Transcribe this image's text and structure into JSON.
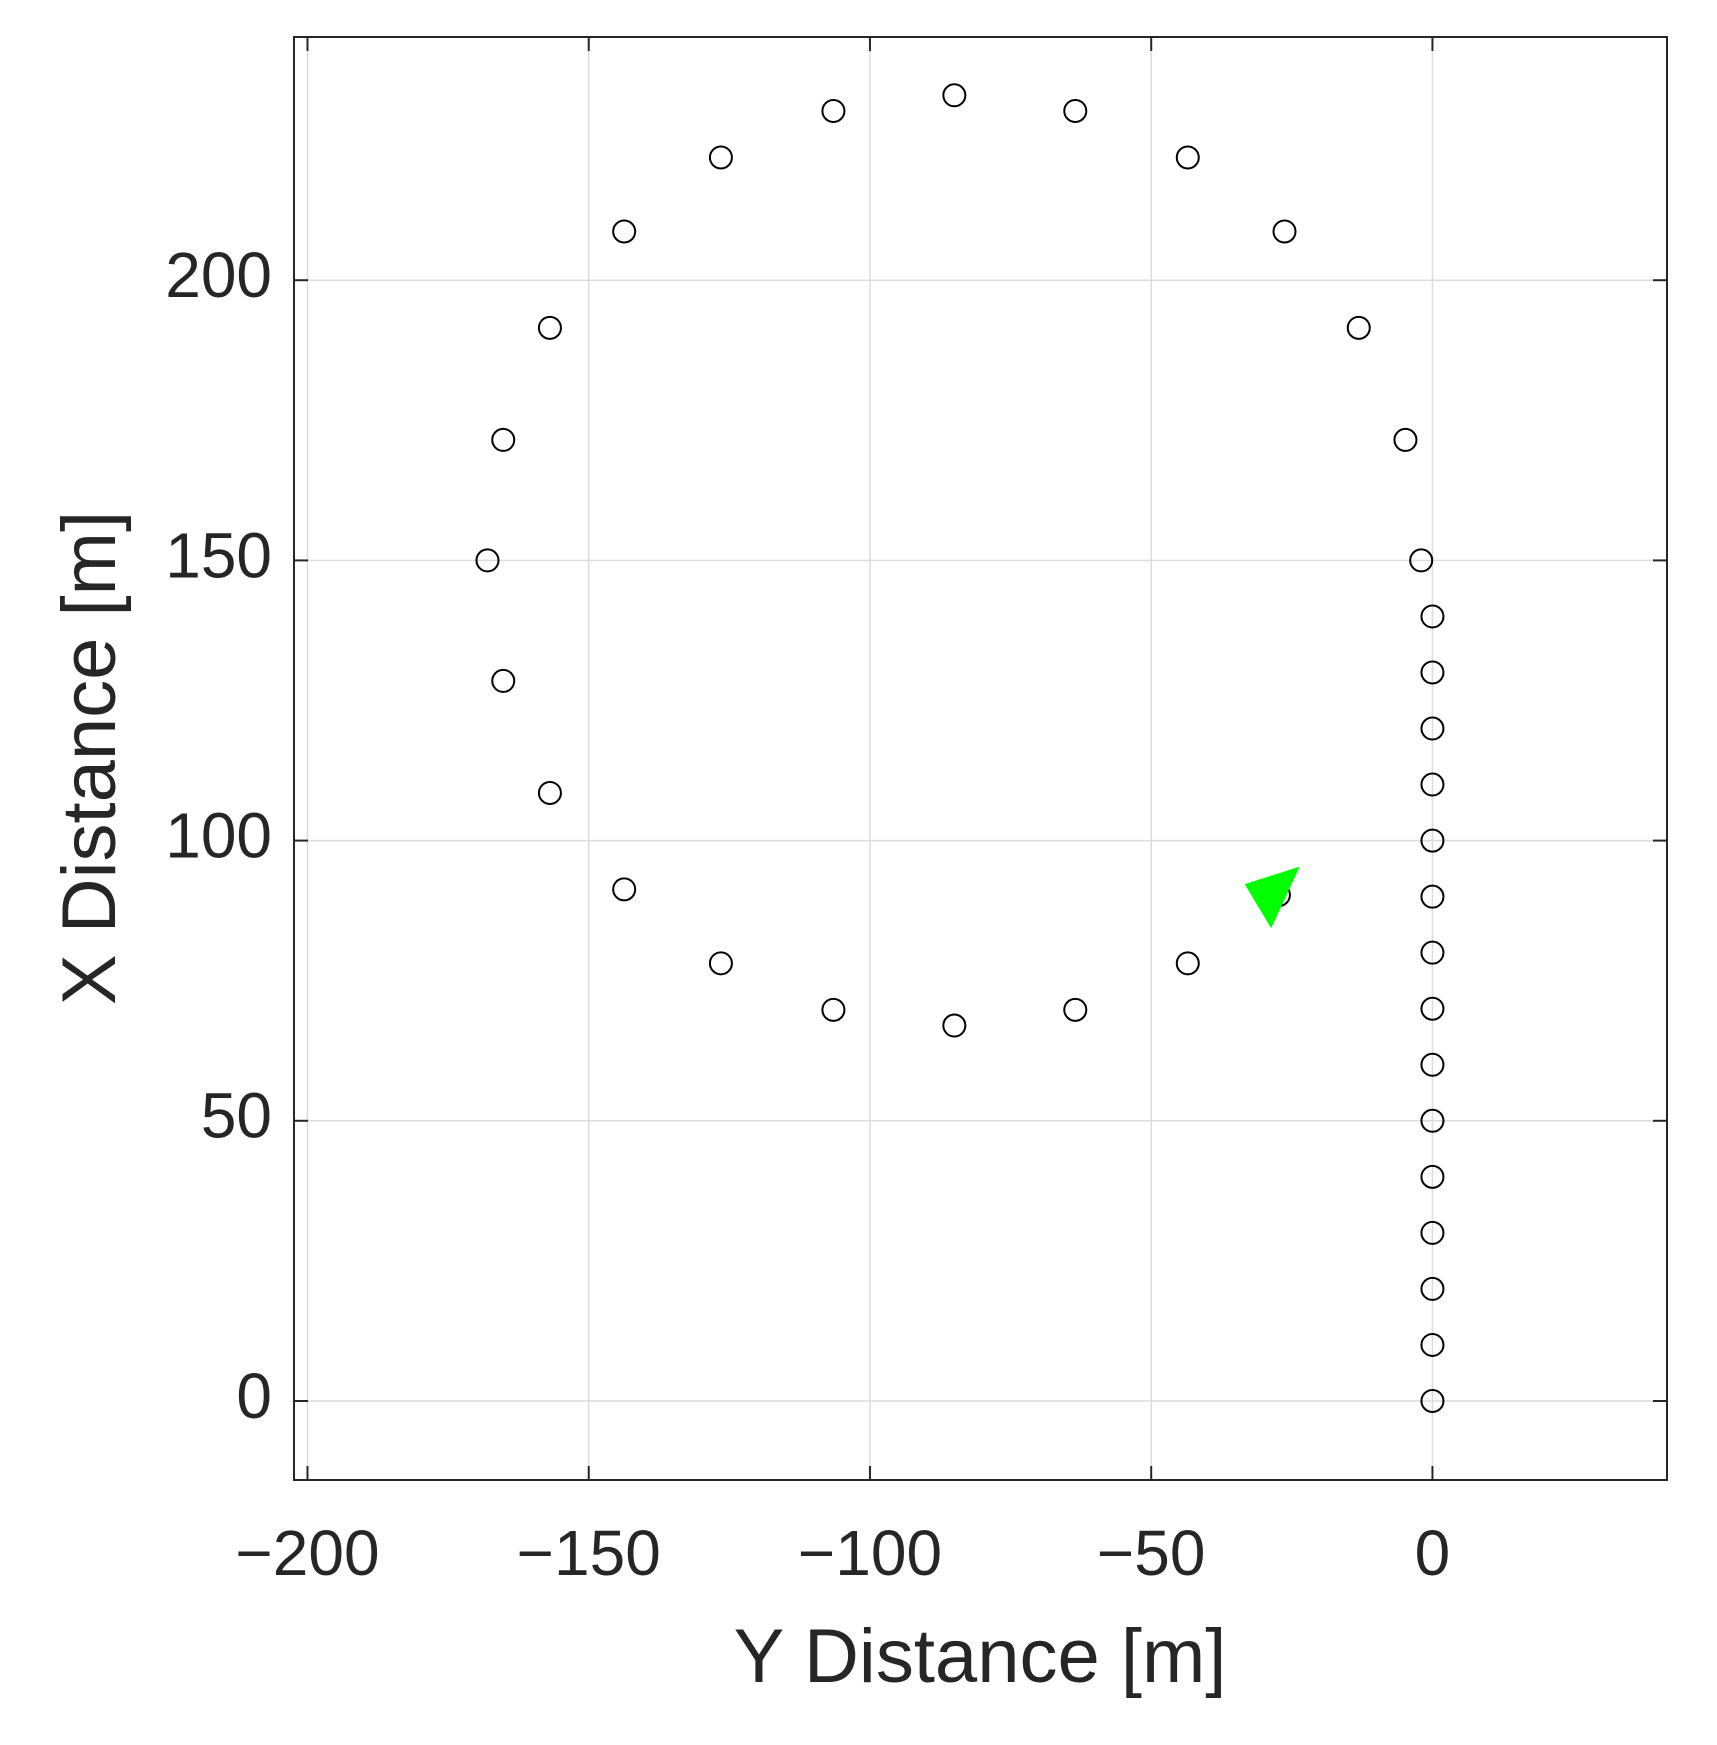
{
  "chart_data": {
    "type": "scatter",
    "x_label": "Y Distance [m]",
    "y_label": "X Distance [m]",
    "xlim": [
      -202.4,
      41.7
    ],
    "ylim": [
      -14.1,
      243.4
    ],
    "xticks": [
      {
        "value": -200,
        "label": "−200"
      },
      {
        "value": -150,
        "label": "−150"
      },
      {
        "value": -100,
        "label": "−100"
      },
      {
        "value": -50,
        "label": "−50"
      },
      0
    ],
    "yticks": [
      0,
      50,
      100,
      150,
      200
    ],
    "grid": true,
    "series": [
      {
        "color": "#000000",
        "marker": "circle",
        "x": [
          0,
          0,
          0,
          0,
          0,
          0,
          0,
          0,
          0,
          0,
          0,
          0,
          0,
          0,
          0,
          -2,
          -4.8,
          -13.1,
          -26.3,
          -43.5,
          -63.5,
          -85,
          -106.5,
          -126.5,
          -143.7,
          -156.9,
          -165.2,
          -168,
          -165.2,
          -156.9,
          -143.7,
          -126.5,
          -106.5,
          -85,
          -63.5,
          -43.5,
          -27.3
        ],
        "y": [
          0,
          10,
          20,
          30,
          40,
          50,
          60,
          70,
          80,
          90,
          100,
          110,
          120,
          130,
          140,
          150,
          171.5,
          191.5,
          208.7,
          221.9,
          230.2,
          233,
          230.2,
          221.9,
          208.7,
          191.5,
          171.5,
          150,
          128.5,
          108.5,
          91.3,
          78.1,
          69.8,
          67,
          69.8,
          78.1,
          90.3
        ]
      },
      {
        "color": "#00ff00",
        "marker": "triangle",
        "x": [
          -28
        ],
        "y": [
          91
        ]
      }
    ]
  }
}
